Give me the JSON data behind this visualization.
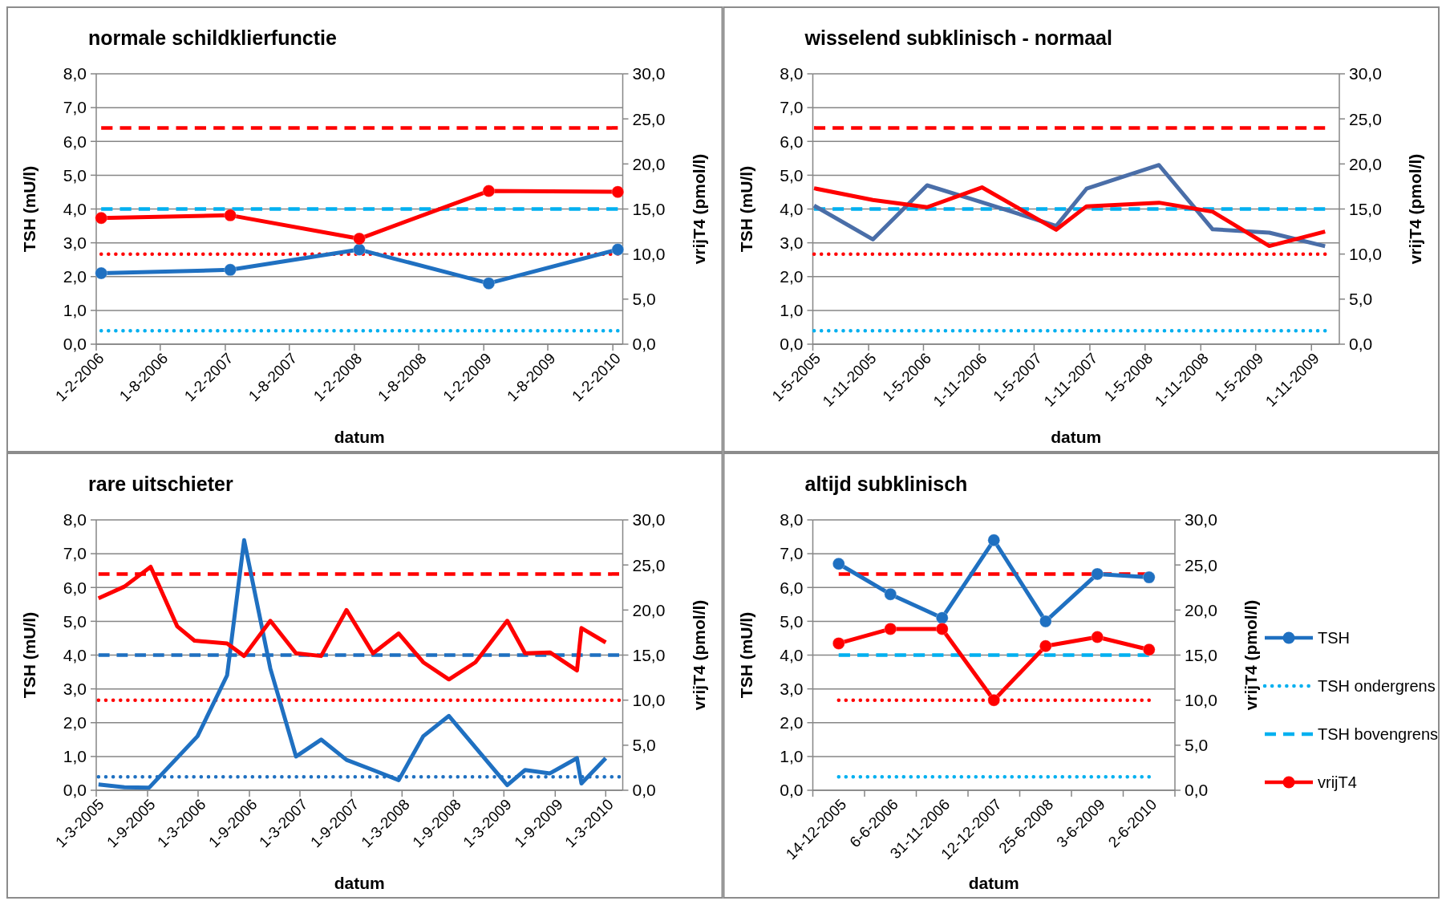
{
  "chart_data": [
    {
      "type": "line",
      "title": "normale schildklierfunctie",
      "xlabel": "datum",
      "ylabel": "TSH (mU/l)",
      "y2label": "vrijT4 (pmol/l)",
      "grid": "y",
      "legend": false,
      "x": [
        "2006-02-15",
        "2007-02-15",
        "2008-02-15",
        "2009-02-15",
        "2010-02-15"
      ],
      "xlim": [
        "2006-02-01",
        "2010-03-01"
      ],
      "xticks": [
        {
          "value": "2006-02-01",
          "label": "1-2-2006"
        },
        {
          "value": "2006-08-01",
          "label": "1-8-2006"
        },
        {
          "value": "2007-02-01",
          "label": "1-2-2007"
        },
        {
          "value": "2007-08-01",
          "label": "1-8-2007"
        },
        {
          "value": "2008-02-01",
          "label": "1-2-2008"
        },
        {
          "value": "2008-08-01",
          "label": "1-8-2008"
        },
        {
          "value": "2009-02-01",
          "label": "1-2-2009"
        },
        {
          "value": "2009-08-01",
          "label": "1-8-2009"
        },
        {
          "value": "2010-02-01",
          "label": "1-2-2010"
        }
      ],
      "ylim": [
        0,
        8
      ],
      "yticks": [
        {
          "value": 0,
          "label": "0,0"
        },
        {
          "value": 1,
          "label": "1,0"
        },
        {
          "value": 2,
          "label": "2,0"
        },
        {
          "value": 3,
          "label": "3,0"
        },
        {
          "value": 4,
          "label": "4,0"
        },
        {
          "value": 5,
          "label": "5,0"
        },
        {
          "value": 6,
          "label": "6,0"
        },
        {
          "value": 7,
          "label": "7,0"
        },
        {
          "value": 8,
          "label": "8,0"
        }
      ],
      "y2lim": [
        0,
        30
      ],
      "y2ticks": [
        {
          "value": 0,
          "label": "0,0"
        },
        {
          "value": 5,
          "label": "5,0"
        },
        {
          "value": 10,
          "label": "10,0"
        },
        {
          "value": 15,
          "label": "15,0"
        },
        {
          "value": 20,
          "label": "20,0"
        },
        {
          "value": 25,
          "label": "25,0"
        },
        {
          "value": 30,
          "label": "30,0"
        }
      ],
      "series": [
        {
          "color": "#1f70c1",
          "marker": "circle",
          "line_style": "solid",
          "values": [
            2.1,
            2.2,
            2.8,
            1.8,
            2.8
          ]
        },
        {
          "color": "#00b0f0",
          "marker": "none",
          "line_style": "dotted",
          "x": [
            "2006-02-15",
            "2010-02-15"
          ],
          "values": [
            0.4,
            0.4
          ]
        },
        {
          "color": "#00b0f0",
          "marker": "none",
          "line_style": "dashed",
          "x": [
            "2006-02-15",
            "2010-02-15"
          ],
          "values": [
            4,
            4
          ]
        },
        {
          "color": "#ff0000",
          "marker": "circle",
          "line_style": "solid",
          "axis": "y2",
          "values": [
            14.0,
            14.3,
            11.7,
            17.0,
            16.9
          ]
        },
        {
          "color": "#ff0000",
          "marker": "none",
          "line_style": "dotted",
          "axis": "y2",
          "x": [
            "2006-02-15",
            "2010-02-15"
          ],
          "values": [
            10,
            10
          ]
        },
        {
          "color": "#ff0000",
          "marker": "none",
          "line_style": "dashed",
          "axis": "y2",
          "x": [
            "2006-02-15",
            "2010-02-15"
          ],
          "values": [
            24,
            24
          ]
        }
      ]
    },
    {
      "type": "line",
      "title": "wisselend subklinisch - normaal",
      "xlabel": "datum",
      "ylabel": "TSH (mU/l)",
      "y2label": "vrijT4 (pmol/l)",
      "grid": "y",
      "legend": false,
      "x": [
        "2005-05-05",
        "2005-11-15",
        "2006-05-13",
        "2006-11-10",
        "2007-07-13",
        "2007-10-21",
        "2008-06-16",
        "2008-12-10",
        "2009-06-15",
        "2009-12-16"
      ],
      "xlim": [
        "2005-05-01",
        "2010-02-01"
      ],
      "xticks": [
        {
          "value": "2005-05-01",
          "label": "1-5-2005"
        },
        {
          "value": "2005-11-01",
          "label": "1-11-2005"
        },
        {
          "value": "2006-05-01",
          "label": "1-5-2006"
        },
        {
          "value": "2006-11-01",
          "label": "1-11-2006"
        },
        {
          "value": "2007-05-01",
          "label": "1-5-2007"
        },
        {
          "value": "2007-11-01",
          "label": "1-11-2007"
        },
        {
          "value": "2008-05-01",
          "label": "1-5-2008"
        },
        {
          "value": "2008-11-01",
          "label": "1-11-2008"
        },
        {
          "value": "2009-05-01",
          "label": "1-5-2009"
        },
        {
          "value": "2009-11-01",
          "label": "1-11-2009"
        }
      ],
      "ylim": [
        0,
        8
      ],
      "yticks": [
        {
          "value": 0,
          "label": "0,0"
        },
        {
          "value": 1,
          "label": "1,0"
        },
        {
          "value": 2,
          "label": "2,0"
        },
        {
          "value": 3,
          "label": "3,0"
        },
        {
          "value": 4,
          "label": "4,0"
        },
        {
          "value": 5,
          "label": "5,0"
        },
        {
          "value": 6,
          "label": "6,0"
        },
        {
          "value": 7,
          "label": "7,0"
        },
        {
          "value": 8,
          "label": "8,0"
        }
      ],
      "y2lim": [
        0,
        30
      ],
      "y2ticks": [
        {
          "value": 0,
          "label": "0,0"
        },
        {
          "value": 5,
          "label": "5,0"
        },
        {
          "value": 10,
          "label": "10,0"
        },
        {
          "value": 15,
          "label": "15,0"
        },
        {
          "value": 20,
          "label": "20,0"
        },
        {
          "value": 25,
          "label": "25,0"
        },
        {
          "value": 30,
          "label": "30,0"
        }
      ],
      "series": [
        {
          "color": "#4a6ea8",
          "marker": "none",
          "line_style": "solid",
          "values": [
            4.1,
            3.1,
            4.7,
            4.2,
            3.5,
            4.6,
            5.3,
            3.4,
            3.3,
            2.9
          ]
        },
        {
          "color": "#00b0f0",
          "marker": "none",
          "line_style": "dotted",
          "x": [
            "2005-05-05",
            "2009-12-16"
          ],
          "values": [
            0.4,
            0.4
          ]
        },
        {
          "color": "#00b0f0",
          "marker": "none",
          "line_style": "dashed",
          "x": [
            "2005-05-05",
            "2009-12-16"
          ],
          "values": [
            4,
            4
          ]
        },
        {
          "color": "#ff0000",
          "marker": "none",
          "line_style": "solid",
          "axis": "y2",
          "values": [
            17.3,
            16.0,
            15.2,
            17.4,
            12.7,
            15.3,
            15.7,
            14.7,
            10.9,
            12.5
          ]
        },
        {
          "color": "#ff0000",
          "marker": "none",
          "line_style": "dotted",
          "axis": "y2",
          "x": [
            "2005-05-05",
            "2009-12-16"
          ],
          "values": [
            10,
            10
          ]
        },
        {
          "color": "#ff0000",
          "marker": "none",
          "line_style": "dashed",
          "axis": "y2",
          "x": [
            "2005-05-05",
            "2009-12-16"
          ],
          "values": [
            24,
            24
          ]
        }
      ]
    },
    {
      "type": "line",
      "title": "rare uitschieter",
      "xlabel": "datum",
      "ylabel": "TSH (mU/l)",
      "y2label": "vrijT4 (pmol/l)",
      "grid": "y",
      "legend": false,
      "xlim": [
        "2005-03-01",
        "2010-05-01"
      ],
      "xticks": [
        {
          "value": "2005-03-01",
          "label": "1-3-2005"
        },
        {
          "value": "2005-09-01",
          "label": "1-9-2005"
        },
        {
          "value": "2006-03-01",
          "label": "1-3-2006"
        },
        {
          "value": "2006-09-01",
          "label": "1-9-2006"
        },
        {
          "value": "2007-03-01",
          "label": "1-3-2007"
        },
        {
          "value": "2007-09-01",
          "label": "1-9-2007"
        },
        {
          "value": "2008-03-01",
          "label": "1-3-2008"
        },
        {
          "value": "2008-09-01",
          "label": "1-9-2008"
        },
        {
          "value": "2009-03-01",
          "label": "1-3-2009"
        },
        {
          "value": "2009-09-01",
          "label": "1-9-2009"
        },
        {
          "value": "2010-03-01",
          "label": "1-3-2010"
        }
      ],
      "ylim": [
        0,
        8
      ],
      "yticks": [
        {
          "value": 0,
          "label": "0,0"
        },
        {
          "value": 1,
          "label": "1,0"
        },
        {
          "value": 2,
          "label": "2,0"
        },
        {
          "value": 3,
          "label": "3,0"
        },
        {
          "value": 4,
          "label": "4,0"
        },
        {
          "value": 5,
          "label": "5,0"
        },
        {
          "value": 6,
          "label": "6,0"
        },
        {
          "value": 7,
          "label": "7,0"
        },
        {
          "value": 8,
          "label": "8,0"
        }
      ],
      "y2lim": [
        0,
        30
      ],
      "y2ticks": [
        {
          "value": 0,
          "label": "0,0"
        },
        {
          "value": 5,
          "label": "5,0"
        },
        {
          "value": 10,
          "label": "10,0"
        },
        {
          "value": 15,
          "label": "15,0"
        },
        {
          "value": 20,
          "label": "20,0"
        },
        {
          "value": 25,
          "label": "25,0"
        },
        {
          "value": 30,
          "label": "30,0"
        }
      ],
      "series": [
        {
          "color": "#1f70c1",
          "marker": "none",
          "line_style": "solid",
          "x": [
            "2005-03-09",
            "2005-06-10",
            "2005-09-07",
            "2006-02-27",
            "2006-06-13",
            "2006-08-13",
            "2006-11-15",
            "2007-02-15",
            "2007-05-16",
            "2007-08-15",
            "2007-11-18",
            "2008-02-18",
            "2008-05-16",
            "2008-08-16",
            "2009-03-13",
            "2009-05-16",
            "2009-08-13",
            "2009-11-18",
            "2009-12-04",
            "2010-03-01"
          ],
          "values": [
            0.17,
            0.09,
            0.08,
            1.6,
            3.4,
            7.4,
            3.6,
            1.0,
            1.5,
            0.9,
            0.6,
            0.3,
            1.6,
            2.2,
            0.15,
            0.6,
            0.5,
            0.95,
            0.2,
            0.95
          ]
        },
        {
          "color": "#1f70c1",
          "marker": "none",
          "line_style": "dotted",
          "x": [
            "2005-03-09",
            "2010-04-18"
          ],
          "values": [
            0.4,
            0.4
          ]
        },
        {
          "color": "#1f70c1",
          "marker": "none",
          "line_style": "dashed",
          "x": [
            "2005-03-09",
            "2010-04-18"
          ],
          "values": [
            4,
            4
          ]
        },
        {
          "color": "#ff0000",
          "marker": "none",
          "line_style": "solid",
          "axis": "y2",
          "x": [
            "2005-03-09",
            "2005-06-10",
            "2005-09-12",
            "2005-12-16",
            "2006-02-16",
            "2006-06-13",
            "2006-08-13",
            "2006-11-15",
            "2007-02-15",
            "2007-05-16",
            "2007-08-15",
            "2007-11-18",
            "2008-02-18",
            "2008-05-16",
            "2008-08-16",
            "2008-11-19",
            "2009-03-13",
            "2009-05-16",
            "2009-08-13",
            "2009-11-18",
            "2009-12-04",
            "2010-03-01"
          ],
          "values": [
            21.3,
            22.6,
            24.8,
            18.2,
            16.6,
            16.3,
            14.9,
            18.8,
            15.2,
            14.9,
            20.0,
            15.2,
            17.4,
            14.2,
            12.3,
            14.2,
            18.8,
            15.2,
            15.3,
            13.3,
            18.0,
            16.4
          ]
        },
        {
          "color": "#ff0000",
          "marker": "none",
          "line_style": "dotted",
          "axis": "y2",
          "x": [
            "2005-03-09",
            "2010-04-18"
          ],
          "values": [
            10,
            10
          ]
        },
        {
          "color": "#ff0000",
          "marker": "none",
          "line_style": "dashed",
          "axis": "y2",
          "x": [
            "2005-03-09",
            "2010-04-18"
          ],
          "values": [
            24,
            24
          ]
        }
      ]
    },
    {
      "type": "line",
      "title": "altijd subklinisch",
      "xlabel": "datum",
      "ylabel": "TSH (mU/l)",
      "y2label": "vrijT4 (pmol/l)",
      "grid": "y",
      "legend": "right",
      "categories": [
        "14-12-2005",
        "6-6-2006",
        "31-11-2006",
        "12-12-2007",
        "25-6-2008",
        "3-6-2009",
        "2-6-2010"
      ],
      "ylim": [
        0,
        8
      ],
      "yticks": [
        {
          "value": 0,
          "label": "0,0"
        },
        {
          "value": 1,
          "label": "1,0"
        },
        {
          "value": 2,
          "label": "2,0"
        },
        {
          "value": 3,
          "label": "3,0"
        },
        {
          "value": 4,
          "label": "4,0"
        },
        {
          "value": 5,
          "label": "5,0"
        },
        {
          "value": 6,
          "label": "6,0"
        },
        {
          "value": 7,
          "label": "7,0"
        },
        {
          "value": 8,
          "label": "8,0"
        }
      ],
      "y2lim": [
        0,
        30
      ],
      "y2ticks": [
        {
          "value": 0,
          "label": "0,0"
        },
        {
          "value": 5,
          "label": "5,0"
        },
        {
          "value": 10,
          "label": "10,0"
        },
        {
          "value": 15,
          "label": "15,0"
        },
        {
          "value": 20,
          "label": "20,0"
        },
        {
          "value": 25,
          "label": "25,0"
        },
        {
          "value": 30,
          "label": "30,0"
        }
      ],
      "series": [
        {
          "name": "TSH",
          "color": "#1f70c1",
          "marker": "circle",
          "line_style": "solid",
          "values": [
            6.7,
            5.8,
            5.1,
            7.4,
            5.0,
            6.4,
            6.3
          ]
        },
        {
          "name": "TSH ondergrens",
          "color": "#00b0f0",
          "marker": "none",
          "line_style": "dotted",
          "values": [
            0.4,
            0.4,
            0.4,
            0.4,
            0.4,
            0.4,
            0.4
          ]
        },
        {
          "name": "TSH bovengrens",
          "color": "#00b0f0",
          "marker": "none",
          "line_style": "dashed",
          "values": [
            4,
            4,
            4,
            4,
            4,
            4,
            4
          ]
        },
        {
          "name": "vrijT4",
          "color": "#ff0000",
          "marker": "circle",
          "line_style": "solid",
          "axis": "y2",
          "values": [
            16.3,
            17.9,
            17.9,
            10.0,
            16.0,
            17.0,
            15.6
          ]
        },
        {
          "color": "#ff0000",
          "marker": "none",
          "line_style": "dotted",
          "axis": "y2",
          "values": [
            10,
            10,
            10,
            10,
            10,
            10,
            10
          ]
        },
        {
          "color": "#ff0000",
          "marker": "none",
          "line_style": "dashed",
          "axis": "y2",
          "values": [
            24,
            24,
            24,
            24,
            24,
            24,
            24
          ]
        }
      ]
    }
  ]
}
